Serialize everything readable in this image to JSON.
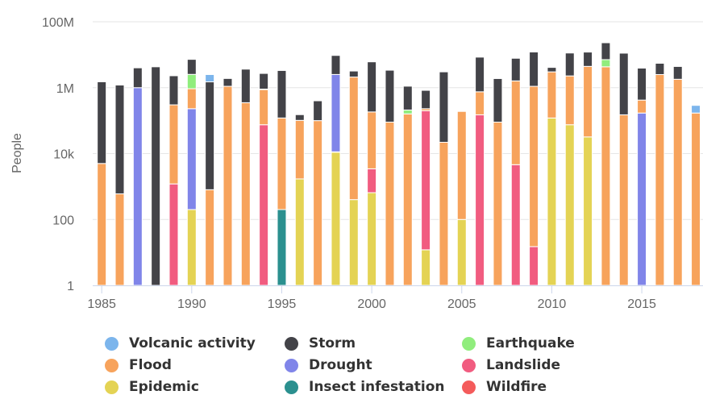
{
  "chart_data": {
    "type": "bar",
    "stacked": true,
    "y_scale": "log",
    "title": "",
    "xlabel": "",
    "ylabel": "People",
    "ylim": [
      1,
      100000000
    ],
    "ytick_values": [
      1,
      100,
      10000,
      1000000,
      100000000
    ],
    "ytick_labels": [
      "1",
      "100",
      "10k",
      "1M",
      "100M"
    ],
    "xtick_values": [
      1985,
      1990,
      1995,
      2000,
      2005,
      2010,
      2015
    ],
    "xtick_labels": [
      "1985",
      "1990",
      "1995",
      "2000",
      "2005",
      "2010",
      "2015"
    ],
    "grid": "horizontal",
    "legend_position": "bottom",
    "x": [
      1985,
      1986,
      1987,
      1988,
      1989,
      1990,
      1991,
      1992,
      1993,
      1994,
      1995,
      1996,
      1997,
      1998,
      1999,
      2000,
      2001,
      2002,
      2003,
      2004,
      2005,
      2006,
      2007,
      2008,
      2009,
      2010,
      2011,
      2012,
      2013,
      2014,
      2015,
      2016,
      2017,
      2018
    ],
    "series": [
      {
        "name": "Epidemic",
        "color": "#e4d354",
        "values": [
          0,
          0,
          0,
          0,
          0,
          200,
          0,
          0,
          0,
          0,
          0,
          1700,
          0,
          11000,
          400,
          650,
          0,
          0,
          12,
          0,
          100,
          0,
          0,
          0,
          0,
          120000,
          75000,
          32000,
          0,
          0,
          0,
          0,
          0,
          0
        ]
      },
      {
        "name": "Wildfire",
        "color": "#f45b5b",
        "values": [
          0,
          0,
          0,
          0,
          0,
          0,
          0,
          0,
          0,
          0,
          0,
          0,
          0,
          300,
          0,
          0,
          0,
          0,
          0,
          0,
          0,
          0,
          0,
          0,
          0,
          0,
          0,
          0,
          0,
          0,
          0,
          0,
          0,
          0
        ]
      },
      {
        "name": "Insect infestation",
        "color": "#2b908f",
        "values": [
          0,
          0,
          0,
          0,
          0,
          0,
          0,
          0,
          0,
          0,
          200,
          0,
          0,
          0,
          0,
          0,
          0,
          0,
          0,
          0,
          0,
          0,
          0,
          0,
          0,
          0,
          0,
          0,
          0,
          0,
          0,
          0,
          0,
          0
        ]
      },
      {
        "name": "Landslide",
        "color": "#f15c80",
        "values": [
          0,
          0,
          0,
          0,
          1200,
          0,
          0,
          0,
          0,
          75000,
          0,
          0,
          0,
          0,
          0,
          2800,
          0,
          0,
          200000,
          0,
          0,
          150000,
          0,
          4600,
          15,
          0,
          0,
          0,
          0,
          0,
          0,
          0,
          0,
          0
        ]
      },
      {
        "name": "Drought",
        "color": "#8085e9",
        "values": [
          0,
          0,
          1000000,
          0,
          0,
          230000,
          0,
          0,
          0,
          0,
          0,
          0,
          0,
          2500000,
          0,
          0,
          0,
          0,
          0,
          0,
          0,
          0,
          0,
          0,
          0,
          0,
          0,
          0,
          0,
          0,
          170000,
          0,
          0,
          0
        ]
      },
      {
        "name": "Flood",
        "color": "#f7a35c",
        "values": [
          5000,
          600,
          0,
          0,
          300000,
          700000,
          800,
          1100000,
          350000,
          800000,
          120000,
          100000,
          100000,
          0,
          2100000,
          180000,
          90000,
          160000,
          30000,
          22000,
          190000,
          600000,
          90000,
          1600000,
          1100000,
          2900000,
          2200000,
          4400000,
          4300000,
          150000,
          250000,
          2500000,
          1800000,
          170000
        ]
      },
      {
        "name": "Earthquake",
        "color": "#90ed7d",
        "values": [
          0,
          0,
          0,
          0,
          0,
          1600000,
          0,
          0,
          0,
          30000,
          0,
          0,
          0,
          0,
          0,
          0,
          0,
          50000,
          0,
          0,
          0,
          0,
          0,
          0,
          0,
          0,
          0,
          0,
          2800000,
          0,
          0,
          0,
          0,
          0
        ]
      },
      {
        "name": "Storm",
        "color": "#434348",
        "values": [
          1500000,
          1200000,
          3000000,
          4300000,
          2000000,
          4700000,
          1500000,
          800000,
          3300000,
          1800000,
          3200000,
          50000,
          300000,
          7000000,
          1100000,
          5900000,
          3300000,
          900000,
          600000,
          3000000,
          0,
          7700000,
          1800000,
          6200000,
          11000000,
          1100000,
          9000000,
          7600000,
          16000000,
          11000000,
          3500000,
          3000000,
          2600000,
          0
        ]
      },
      {
        "name": "Volcanic activity",
        "color": "#7cb5ec",
        "values": [
          0,
          0,
          0,
          0,
          0,
          0,
          1000000,
          0,
          0,
          0,
          0,
          0,
          0,
          0,
          0,
          0,
          0,
          0,
          0,
          0,
          0,
          0,
          0,
          0,
          0,
          0,
          0,
          0,
          0,
          0,
          0,
          0,
          0,
          120000
        ]
      }
    ]
  },
  "legend": [
    {
      "label": "Volcanic activity",
      "color": "#7cb5ec"
    },
    {
      "label": "Storm",
      "color": "#434348"
    },
    {
      "label": "Earthquake",
      "color": "#90ed7d"
    },
    {
      "label": "Flood",
      "color": "#f7a35c"
    },
    {
      "label": "Drought",
      "color": "#8085e9"
    },
    {
      "label": "Landslide",
      "color": "#f15c80"
    },
    {
      "label": "Epidemic",
      "color": "#e4d354"
    },
    {
      "label": "Insect infestation",
      "color": "#2b908f"
    },
    {
      "label": "Wildfire",
      "color": "#f45b5b"
    }
  ]
}
